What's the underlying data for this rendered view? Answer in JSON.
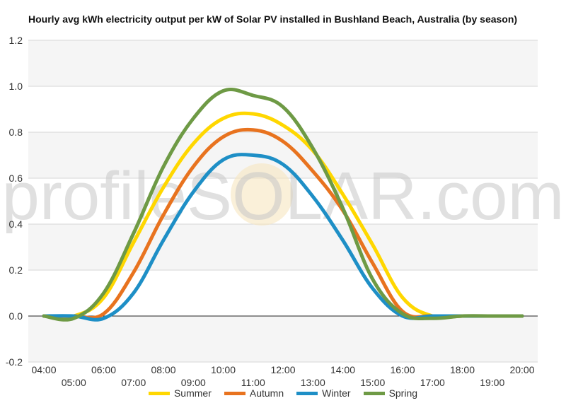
{
  "chart_data": {
    "type": "line",
    "title": "Hourly avg kWh electricity output per kW of Solar PV installed in Bushland Beach, Australia (by season)",
    "xlabel": "",
    "ylabel": "",
    "watermark": "profileSOLAR.com",
    "x": [
      "04:00",
      "05:00",
      "06:00",
      "07:00",
      "08:00",
      "09:00",
      "10:00",
      "11:00",
      "12:00",
      "13:00",
      "14:00",
      "15:00",
      "16:00",
      "17:00",
      "18:00",
      "19:00",
      "20:00"
    ],
    "ylim": [
      -0.2,
      1.2
    ],
    "yticks": [
      -0.2,
      0.0,
      0.2,
      0.4,
      0.6,
      0.8,
      1.0,
      1.2
    ],
    "ytick_labels": [
      "-0.2",
      "0.0",
      "0.2",
      "0.4",
      "0.6",
      "0.8",
      "1.0",
      "1.2"
    ],
    "grid": true,
    "legend_position": "bottom",
    "series": [
      {
        "name": "Summer",
        "color": "#FFD700",
        "values": [
          0,
          0,
          0.08,
          0.32,
          0.56,
          0.75,
          0.86,
          0.88,
          0.83,
          0.72,
          0.53,
          0.31,
          0.08,
          0,
          0,
          0,
          0
        ]
      },
      {
        "name": "Autumn",
        "color": "#E8731F",
        "values": [
          0,
          0,
          0.01,
          0.19,
          0.44,
          0.65,
          0.78,
          0.81,
          0.76,
          0.63,
          0.46,
          0.23,
          0.02,
          0,
          0,
          0,
          0
        ]
      },
      {
        "name": "Winter",
        "color": "#1E8FC6",
        "values": [
          0,
          0,
          -0.01,
          0.1,
          0.33,
          0.54,
          0.68,
          0.7,
          0.66,
          0.52,
          0.33,
          0.12,
          0,
          0,
          0,
          0,
          0
        ]
      },
      {
        "name": "Spring",
        "color": "#6E9A45",
        "values": [
          0,
          -0.01,
          0.1,
          0.36,
          0.65,
          0.86,
          0.98,
          0.96,
          0.91,
          0.73,
          0.47,
          0.16,
          0.01,
          -0.01,
          0,
          0,
          0
        ]
      }
    ]
  }
}
